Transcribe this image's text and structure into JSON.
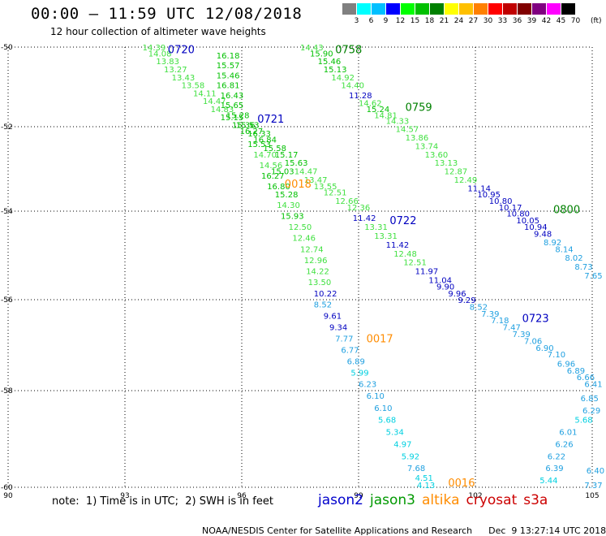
{
  "header": {
    "title": "00:00 – 11:59 UTC 12/08/2018",
    "subtitle": "12 hour collection of altimeter wave heights"
  },
  "legend": {
    "unit": "(ft)",
    "bins": [
      {
        "label": "3",
        "color": "#808080"
      },
      {
        "label": "6",
        "color": "#00ffff"
      },
      {
        "label": "9",
        "color": "#00c0ff"
      },
      {
        "label": "12",
        "color": "#0000ff"
      },
      {
        "label": "15",
        "color": "#00ff00"
      },
      {
        "label": "18",
        "color": "#00c000"
      },
      {
        "label": "21",
        "color": "#008000"
      },
      {
        "label": "24",
        "color": "#ffff00"
      },
      {
        "label": "27",
        "color": "#ffc000"
      },
      {
        "label": "30",
        "color": "#ff8000"
      },
      {
        "label": "33",
        "color": "#ff0000"
      },
      {
        "label": "36",
        "color": "#c00000"
      },
      {
        "label": "39",
        "color": "#800000"
      },
      {
        "label": "42",
        "color": "#800080"
      },
      {
        "label": "45",
        "color": "#ff00ff"
      },
      {
        "label": "70",
        "color": "#000000"
      }
    ]
  },
  "axes": {
    "lon_ticks": [
      "90",
      "93",
      "96",
      "99",
      "102",
      "105"
    ],
    "lat_ticks": [
      "-50",
      "-52",
      "-54",
      "-56",
      "-58",
      "-60"
    ]
  },
  "swh_colors": {
    "gt18": "#008000",
    "gt15": "#00c000",
    "gt12": "#40e040",
    "gt9": "#0000c0",
    "gt6": "#20a0e0",
    "gt3": "#00d0e0"
  },
  "time_color": {
    "jason2": "#0000c0",
    "jason3": "#008000",
    "altika": "#ff8c00"
  },
  "time_labels": [
    {
      "text": "0720",
      "sat": "jason2",
      "lon": 94.1,
      "lat": -50.05
    },
    {
      "text": "0721",
      "sat": "jason2",
      "lon": 96.4,
      "lat": -51.8
    },
    {
      "text": "0722",
      "sat": "jason2",
      "lon": 99.8,
      "lat": -54.2
    },
    {
      "text": "0723",
      "sat": "jason2",
      "lon": 103.2,
      "lat": -56.4
    },
    {
      "text": "0758",
      "sat": "jason3",
      "lon": 98.4,
      "lat": -50.05
    },
    {
      "text": "0759",
      "sat": "jason3",
      "lon": 100.2,
      "lat": -51.5
    },
    {
      "text": "0800",
      "sat": "jason3",
      "lon": 104.0,
      "lat": -53.95
    },
    {
      "text": "0018",
      "sat": "altika",
      "lon": 97.1,
      "lat": -53.35
    },
    {
      "text": "0017",
      "sat": "altika",
      "lon": 99.2,
      "lat": -56.85
    },
    {
      "text": "0016",
      "sat": "altika",
      "lon": 101.3,
      "lat": -59.9
    }
  ],
  "tracks": [
    {
      "sat": "jason2",
      "points": [
        {
          "lon": 93.45,
          "lat": -50.0,
          "v": 14.39
        },
        {
          "lon": 93.6,
          "lat": -50.15,
          "v": 14.08
        },
        {
          "lon": 93.8,
          "lat": -50.35,
          "v": 13.83
        },
        {
          "lon": 94.0,
          "lat": -50.55,
          "v": 13.27
        },
        {
          "lon": 94.2,
          "lat": -50.75,
          "v": 13.43
        },
        {
          "lon": 94.45,
          "lat": -50.95,
          "v": 13.58
        },
        {
          "lon": 94.75,
          "lat": -51.15,
          "v": 14.11
        },
        {
          "lon": 95.0,
          "lat": -51.35,
          "v": 14.47
        },
        {
          "lon": 95.2,
          "lat": -51.55,
          "v": 14.83
        },
        {
          "lon": 95.45,
          "lat": -51.75,
          "v": 15.15
        },
        {
          "lon": 95.75,
          "lat": -51.95,
          "v": 15.36
        },
        {
          "lon": 95.95,
          "lat": -52.1,
          "v": 16.27
        },
        {
          "lon": 96.3,
          "lat": -52.3,
          "v": 16.84
        },
        {
          "lon": 96.55,
          "lat": -52.5,
          "v": 15.58
        },
        {
          "lon": 96.85,
          "lat": -52.65,
          "v": 15.17
        },
        {
          "lon": 97.1,
          "lat": -52.85,
          "v": 15.63
        },
        {
          "lon": 97.35,
          "lat": -53.05,
          "v": 14.47
        },
        {
          "lon": 97.6,
          "lat": -53.25,
          "v": 13.47
        },
        {
          "lon": 97.85,
          "lat": -53.4,
          "v": 13.55
        },
        {
          "lon": 98.1,
          "lat": -53.55,
          "v": 12.51
        },
        {
          "lon": 98.4,
          "lat": -53.75,
          "v": 12.66
        },
        {
          "lon": 98.7,
          "lat": -53.9,
          "v": 12.36
        },
        {
          "lon": 98.85,
          "lat": -54.15,
          "v": 11.42
        },
        {
          "lon": 99.15,
          "lat": -54.35,
          "v": 13.31
        },
        {
          "lon": 99.4,
          "lat": -54.55,
          "v": 13.31
        },
        {
          "lon": 99.7,
          "lat": -54.75,
          "v": 11.42
        },
        {
          "lon": 99.9,
          "lat": -54.95,
          "v": 12.48
        },
        {
          "lon": 100.15,
          "lat": -55.15,
          "v": 12.51
        },
        {
          "lon": 100.45,
          "lat": -55.35,
          "v": 11.97
        },
        {
          "lon": 100.8,
          "lat": -55.55,
          "v": 11.04
        },
        {
          "lon": 101.0,
          "lat": -55.7,
          "v": 9.9
        },
        {
          "lon": 101.3,
          "lat": -55.85,
          "v": 9.96
        },
        {
          "lon": 101.55,
          "lat": -56.0,
          "v": 9.29
        },
        {
          "lon": 101.85,
          "lat": -56.15,
          "v": 8.52
        },
        {
          "lon": 102.15,
          "lat": -56.3,
          "v": 7.39
        },
        {
          "lon": 102.4,
          "lat": -56.45,
          "v": 7.18
        },
        {
          "lon": 102.7,
          "lat": -56.6,
          "v": 7.47
        },
        {
          "lon": 102.95,
          "lat": -56.75,
          "v": 7.39
        },
        {
          "lon": 103.25,
          "lat": -56.9,
          "v": 7.06
        },
        {
          "lon": 103.55,
          "lat": -57.05,
          "v": 6.9
        },
        {
          "lon": 103.85,
          "lat": -57.2,
          "v": 7.1
        },
        {
          "lon": 104.1,
          "lat": -57.4,
          "v": 6.96
        },
        {
          "lon": 104.35,
          "lat": -57.55,
          "v": 6.89
        },
        {
          "lon": 104.6,
          "lat": -57.7,
          "v": 6.66
        },
        {
          "lon": 104.8,
          "lat": -57.85,
          "v": 6.41
        }
      ]
    },
    {
      "sat": "jason3",
      "points": [
        {
          "lon": 97.5,
          "lat": -50.0,
          "v": 14.43
        },
        {
          "lon": 97.75,
          "lat": -50.15,
          "v": 15.9
        },
        {
          "lon": 97.95,
          "lat": -50.35,
          "v": 15.46
        },
        {
          "lon": 98.1,
          "lat": -50.55,
          "v": 15.13
        },
        {
          "lon": 98.3,
          "lat": -50.75,
          "v": 14.92
        },
        {
          "lon": 98.55,
          "lat": -50.95,
          "v": 14.4
        },
        {
          "lon": 98.75,
          "lat": -51.2,
          "v": 11.28
        },
        {
          "lon": 99.0,
          "lat": -51.4,
          "v": 14.62
        },
        {
          "lon": 99.2,
          "lat": -51.55,
          "v": 15.24
        },
        {
          "lon": 99.4,
          "lat": -51.7,
          "v": 14.81
        },
        {
          "lon": 99.7,
          "lat": -51.85,
          "v": 14.33
        },
        {
          "lon": 99.95,
          "lat": -52.05,
          "v": 14.57
        },
        {
          "lon": 100.2,
          "lat": -52.25,
          "v": 13.86
        },
        {
          "lon": 100.45,
          "lat": -52.45,
          "v": 13.74
        },
        {
          "lon": 100.7,
          "lat": -52.65,
          "v": 13.6
        },
        {
          "lon": 100.95,
          "lat": -52.85,
          "v": 13.13
        },
        {
          "lon": 101.2,
          "lat": -53.05,
          "v": 12.87
        },
        {
          "lon": 101.45,
          "lat": -53.25,
          "v": 12.49
        },
        {
          "lon": 101.8,
          "lat": -53.45,
          "v": 11.14
        },
        {
          "lon": 102.05,
          "lat": -53.6,
          "v": 10.95
        },
        {
          "lon": 102.35,
          "lat": -53.75,
          "v": 10.8
        },
        {
          "lon": 102.6,
          "lat": -53.9,
          "v": 10.17
        },
        {
          "lon": 102.8,
          "lat": -54.05,
          "v": 10.8
        },
        {
          "lon": 103.05,
          "lat": -54.2,
          "v": 10.05
        },
        {
          "lon": 103.25,
          "lat": -54.35,
          "v": 10.94
        },
        {
          "lon": 103.5,
          "lat": -54.5,
          "v": 9.48
        },
        {
          "lon": 103.75,
          "lat": -54.7,
          "v": 8.92
        },
        {
          "lon": 104.05,
          "lat": -54.85,
          "v": 8.14
        },
        {
          "lon": 104.3,
          "lat": -55.05,
          "v": 8.02
        },
        {
          "lon": 104.55,
          "lat": -55.25,
          "v": 8.73
        },
        {
          "lon": 104.8,
          "lat": -55.45,
          "v": 7.65
        }
      ]
    },
    {
      "sat": "altika",
      "points": [
        {
          "lon": 95.35,
          "lat": -50.2,
          "v": 16.18
        },
        {
          "lon": 95.35,
          "lat": -50.45,
          "v": 15.57
        },
        {
          "lon": 95.35,
          "lat": -50.7,
          "v": 15.46
        },
        {
          "lon": 95.35,
          "lat": -50.95,
          "v": 16.81
        },
        {
          "lon": 95.45,
          "lat": -51.2,
          "v": 16.43
        },
        {
          "lon": 95.45,
          "lat": -51.45,
          "v": 15.65
        },
        {
          "lon": 95.6,
          "lat": -51.7,
          "v": 15.28
        },
        {
          "lon": 95.85,
          "lat": -51.95,
          "v": 15.53
        },
        {
          "lon": 96.15,
          "lat": -52.15,
          "v": 16.33
        },
        {
          "lon": 96.15,
          "lat": -52.4,
          "v": 15.53
        },
        {
          "lon": 96.3,
          "lat": -52.65,
          "v": 14.7
        },
        {
          "lon": 96.45,
          "lat": -52.9,
          "v": 14.56
        },
        {
          "lon": 96.75,
          "lat": -53.05,
          "v": 15.03
        },
        {
          "lon": 96.5,
          "lat": -53.15,
          "v": 16.27
        },
        {
          "lon": 96.65,
          "lat": -53.4,
          "v": 16.8
        },
        {
          "lon": 96.85,
          "lat": -53.6,
          "v": 15.28
        },
        {
          "lon": 96.9,
          "lat": -53.85,
          "v": 14.3
        },
        {
          "lon": 97.0,
          "lat": -54.1,
          "v": 15.93
        },
        {
          "lon": 97.2,
          "lat": -54.35,
          "v": 12.5
        },
        {
          "lon": 97.3,
          "lat": -54.6,
          "v": 12.46
        },
        {
          "lon": 97.5,
          "lat": -54.85,
          "v": 12.74
        },
        {
          "lon": 97.6,
          "lat": -55.1,
          "v": 12.96
        },
        {
          "lon": 97.65,
          "lat": -55.35,
          "v": 14.22
        },
        {
          "lon": 97.7,
          "lat": -55.6,
          "v": 13.5
        },
        {
          "lon": 97.85,
          "lat": -55.85,
          "v": 10.22
        },
        {
          "lon": 97.85,
          "lat": -56.1,
          "v": 8.52
        },
        {
          "lon": 98.1,
          "lat": -56.35,
          "v": 9.61
        },
        {
          "lon": 98.25,
          "lat": -56.6,
          "v": 9.34
        },
        {
          "lon": 98.4,
          "lat": -56.85,
          "v": 7.77
        },
        {
          "lon": 98.55,
          "lat": -57.1,
          "v": 6.77
        },
        {
          "lon": 98.7,
          "lat": -57.35,
          "v": 6.89
        },
        {
          "lon": 98.8,
          "lat": -57.6,
          "v": 5.99
        },
        {
          "lon": 99.0,
          "lat": -57.85,
          "v": 6.23
        },
        {
          "lon": 99.2,
          "lat": -58.1,
          "v": 6.1
        },
        {
          "lon": 99.4,
          "lat": -58.35,
          "v": 6.1
        },
        {
          "lon": 99.5,
          "lat": -58.6,
          "v": 5.68
        },
        {
          "lon": 99.7,
          "lat": -58.85,
          "v": 5.34
        },
        {
          "lon": 99.9,
          "lat": -59.1,
          "v": 4.97
        },
        {
          "lon": 100.1,
          "lat": -59.35,
          "v": 5.92
        },
        {
          "lon": 100.25,
          "lat": -59.6,
          "v": 7.68
        },
        {
          "lon": 100.45,
          "lat": -59.8,
          "v": 4.51
        },
        {
          "lon": 100.5,
          "lat": -59.95,
          "v": 4.13
        }
      ]
    },
    {
      "sat": "jason3",
      "points": [
        {
          "lon": 104.7,
          "lat": -58.15,
          "v": 6.85
        },
        {
          "lon": 104.75,
          "lat": -58.4,
          "v": 6.29
        },
        {
          "lon": 104.55,
          "lat": -58.6,
          "v": 5.68
        },
        {
          "lon": 104.15,
          "lat": -58.85,
          "v": 6.01
        },
        {
          "lon": 104.05,
          "lat": -59.1,
          "v": 6.26
        },
        {
          "lon": 103.85,
          "lat": -59.35,
          "v": 6.22
        },
        {
          "lon": 103.8,
          "lat": -59.6,
          "v": 6.39
        },
        {
          "lon": 103.65,
          "lat": -59.85,
          "v": 5.44
        },
        {
          "lon": 104.85,
          "lat": -59.65,
          "v": 6.4
        },
        {
          "lon": 104.8,
          "lat": -59.95,
          "v": 7.37
        }
      ]
    }
  ],
  "footer": {
    "note": "note:  1) Time is in UTC;  2) SWH is in feet",
    "satellites": [
      {
        "name": "jason2",
        "color": "#0000cc"
      },
      {
        "name": "jason3",
        "color": "#009900"
      },
      {
        "name": "altika",
        "color": "#ff8c00"
      },
      {
        "name": "cryosat",
        "color": "#cc0000"
      },
      {
        "name": "s3a",
        "color": "#cc0000"
      }
    ],
    "credit": "NOAA/NESDIS Center for Satellite Applications and Research",
    "timestamp": "Dec  9 13:27:14 UTC 2018"
  }
}
